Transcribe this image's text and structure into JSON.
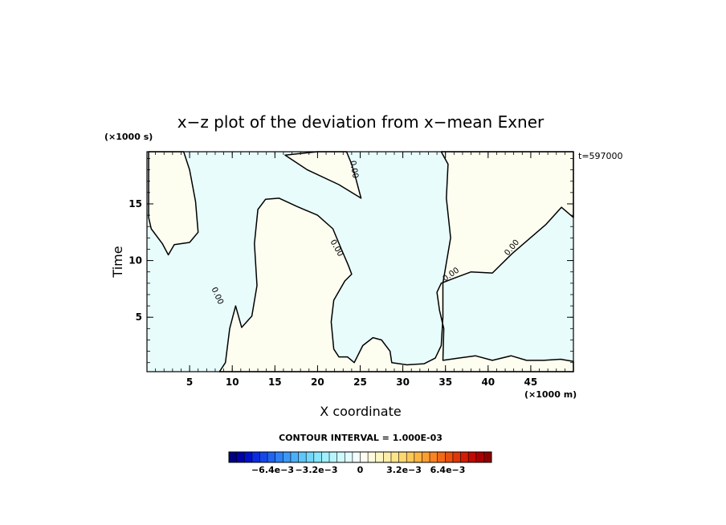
{
  "chart_data": {
    "type": "contour",
    "title": "x−z plot of the deviation from x−mean Exner",
    "xlabel": "X coordinate",
    "ylabel": "Time",
    "x_units": "(×1000 m)",
    "y_units": "(×1000 s)",
    "time_label": "t=597000",
    "xlim": [
      0,
      50
    ],
    "ylim": [
      0.2,
      19.6
    ],
    "xticks": [
      5,
      10,
      15,
      20,
      25,
      30,
      35,
      40,
      45
    ],
    "yticks": [
      5,
      10,
      15
    ],
    "contour_interval_text": "CONTOUR INTERVAL = 1.000E-03",
    "zero_contour_label": "0.00",
    "colors": {
      "positive": "#fdfdf0",
      "negative": "#e8fcfc"
    },
    "colorbar": {
      "min": -0.0096,
      "max": 0.0096,
      "colors": [
        "#00007f",
        "#0000a6",
        "#0010c8",
        "#0a2ce0",
        "#1448ec",
        "#2064f0",
        "#2e80f4",
        "#3c98f6",
        "#4cb0f8",
        "#5ec6fa",
        "#72d8fb",
        "#88e6fc",
        "#a0f0fd",
        "#b8f6fd",
        "#cffafd",
        "#e2fcfd",
        "#f2fefe",
        "#fdfdf2",
        "#fdfadc",
        "#fdf5c2",
        "#fdeea6",
        "#fde48a",
        "#fdd870",
        "#fdc858",
        "#fdb442",
        "#fd9e30",
        "#f98422",
        "#f26a16",
        "#ea500e",
        "#e03608",
        "#d21e04",
        "#c00a02",
        "#a80000",
        "#8c0000"
      ],
      "tick_labels": [
        {
          "value": -0.0064,
          "text": "−6.4e−3"
        },
        {
          "value": -0.0032,
          "text": "−3.2e−3"
        },
        {
          "value": 0,
          "text": "0"
        },
        {
          "value": 0.0032,
          "text": "3.2e−3"
        },
        {
          "value": 0.0064,
          "text": "6.4e−3"
        }
      ]
    },
    "positive_regions": [
      [
        [
          0.2,
          19.6
        ],
        [
          4.3,
          19.6
        ],
        [
          5.0,
          18.0
        ],
        [
          5.7,
          15.2
        ],
        [
          6.0,
          12.5
        ],
        [
          5.0,
          11.6
        ],
        [
          3.2,
          11.4
        ],
        [
          2.5,
          10.5
        ],
        [
          1.8,
          11.5
        ],
        [
          0.5,
          12.8
        ],
        [
          0.2,
          13.8
        ]
      ],
      [
        [
          16.2,
          19.3
        ],
        [
          20.0,
          19.6
        ],
        [
          23.4,
          19.6
        ],
        [
          24.0,
          18.5
        ],
        [
          24.5,
          17.2
        ],
        [
          25.1,
          15.5
        ],
        [
          22.5,
          16.7
        ],
        [
          18.8,
          18.0
        ]
      ],
      [
        [
          34.5,
          19.6
        ],
        [
          50,
          19.6
        ],
        [
          50,
          13.8
        ],
        [
          48.6,
          14.7
        ],
        [
          46.8,
          13.2
        ],
        [
          42.8,
          10.6
        ],
        [
          40.5,
          8.9
        ],
        [
          38.0,
          9.0
        ],
        [
          36.2,
          8.5
        ],
        [
          34.5,
          8.0
        ],
        [
          34.0,
          7.2
        ],
        [
          34.3,
          5.6
        ],
        [
          34.8,
          4.0
        ],
        [
          34.7,
          1.2
        ],
        [
          36.5,
          1.4
        ],
        [
          38.5,
          1.6
        ],
        [
          40.5,
          1.2
        ],
        [
          42.7,
          1.6
        ],
        [
          44.5,
          1.2
        ],
        [
          46.5,
          1.2
        ],
        [
          48.5,
          1.3
        ],
        [
          50,
          1.1
        ],
        [
          50,
          0.2
        ],
        [
          8.5,
          0.2
        ],
        [
          9.2,
          1.0
        ],
        [
          9.7,
          4.0
        ],
        [
          10.4,
          6.0
        ],
        [
          11.1,
          4.1
        ],
        [
          12.3,
          5.1
        ],
        [
          12.9,
          7.8
        ],
        [
          12.6,
          11.5
        ],
        [
          13.0,
          14.5
        ],
        [
          13.9,
          15.4
        ],
        [
          15.5,
          15.5
        ],
        [
          17.5,
          14.8
        ],
        [
          20.0,
          14.0
        ],
        [
          21.8,
          12.8
        ],
        [
          22.8,
          11.0
        ],
        [
          23.6,
          9.6
        ],
        [
          24.0,
          8.8
        ],
        [
          23.2,
          8.2
        ],
        [
          21.9,
          6.5
        ],
        [
          21.6,
          4.6
        ],
        [
          21.9,
          2.2
        ],
        [
          22.5,
          1.5
        ],
        [
          23.5,
          1.5
        ],
        [
          24.3,
          1.0
        ],
        [
          25.3,
          2.5
        ],
        [
          26.5,
          3.2
        ],
        [
          27.5,
          3.0
        ],
        [
          28.5,
          2.0
        ],
        [
          28.7,
          1.0
        ],
        [
          30.5,
          0.8
        ],
        [
          32.5,
          0.9
        ],
        [
          33.8,
          1.4
        ],
        [
          34.5,
          2.5
        ],
        [
          34.7,
          5.0
        ],
        [
          34.7,
          8.0
        ],
        [
          35.6,
          12.0
        ],
        [
          35.1,
          15.5
        ],
        [
          35.3,
          18.5
        ]
      ]
    ]
  }
}
